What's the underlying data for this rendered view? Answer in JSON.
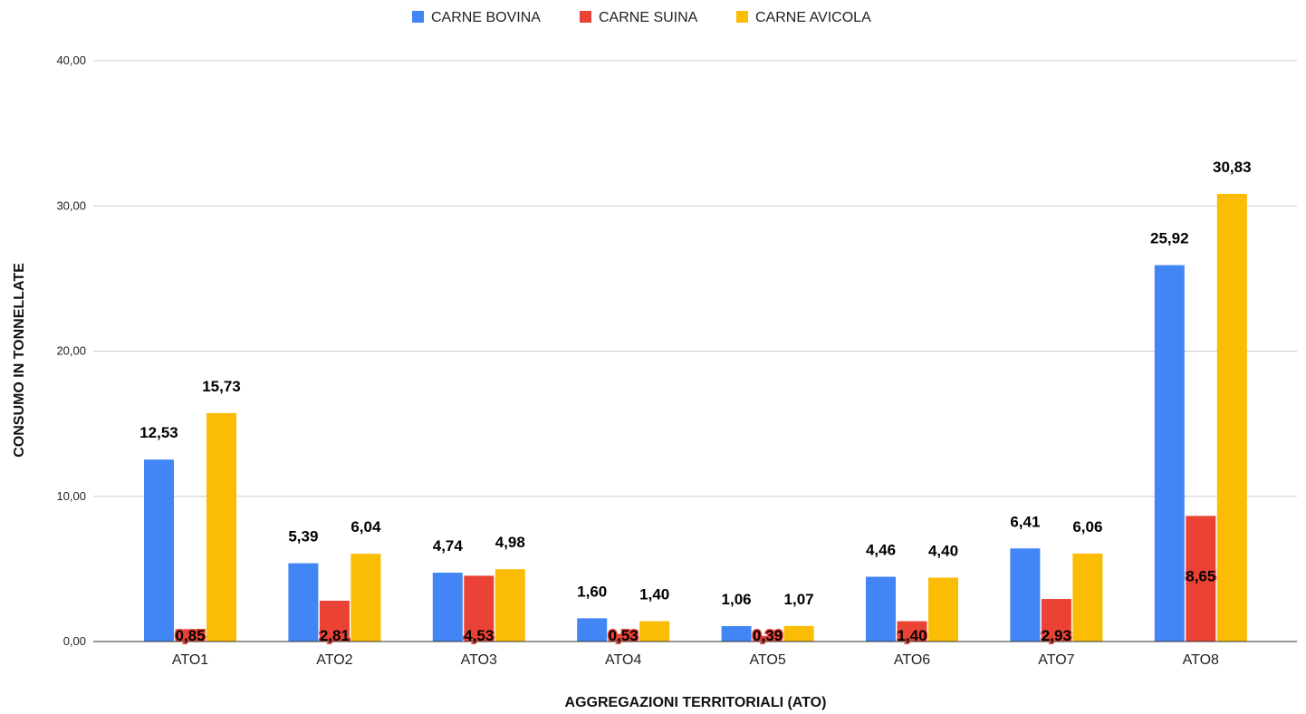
{
  "chart_data": {
    "type": "bar",
    "xlabel": "AGGREGAZIONI TERRITORIALI (ATO)",
    "ylabel": "CONSUMO IN TONNELLATE",
    "categories": [
      "ATO1",
      "ATO2",
      "ATO3",
      "ATO4",
      "ATO5",
      "ATO6",
      "ATO7",
      "ATO8"
    ],
    "series": [
      {
        "name": "CARNE BOVINA",
        "color": "#4285F4",
        "values": [
          12.53,
          5.39,
          4.74,
          1.6,
          1.06,
          4.46,
          6.41,
          25.92
        ],
        "labels": [
          "12,53",
          "5,39",
          "4,74",
          "1,60",
          "1,06",
          "4,46",
          "6,41",
          "25,92"
        ]
      },
      {
        "name": "CARNE SUINA",
        "color": "#EA4335",
        "values": [
          0.85,
          2.81,
          4.53,
          0.53,
          0.39,
          1.4,
          2.93,
          8.65
        ],
        "labels": [
          "0,85",
          "2,81",
          "4,53",
          "0,53",
          "0,39",
          "1,40",
          "2,93",
          "8,65"
        ]
      },
      {
        "name": "CARNE AVICOLA",
        "color": "#FBBC04",
        "values": [
          15.73,
          6.04,
          4.98,
          1.4,
          1.07,
          4.4,
          6.06,
          30.83
        ],
        "labels": [
          "15,73",
          "6,04",
          "4,98",
          "1,40",
          "1,07",
          "4,40",
          "6,06",
          "30,83"
        ]
      }
    ],
    "ylim": [
      0,
      40
    ],
    "yticks": [
      0,
      10,
      20,
      30,
      40
    ],
    "ytick_labels": [
      "0,00",
      "10,00",
      "20,00",
      "30,00",
      "40,00"
    ],
    "grid": true,
    "legend_position": "top-center",
    "gridline_color": "#cccccc"
  }
}
